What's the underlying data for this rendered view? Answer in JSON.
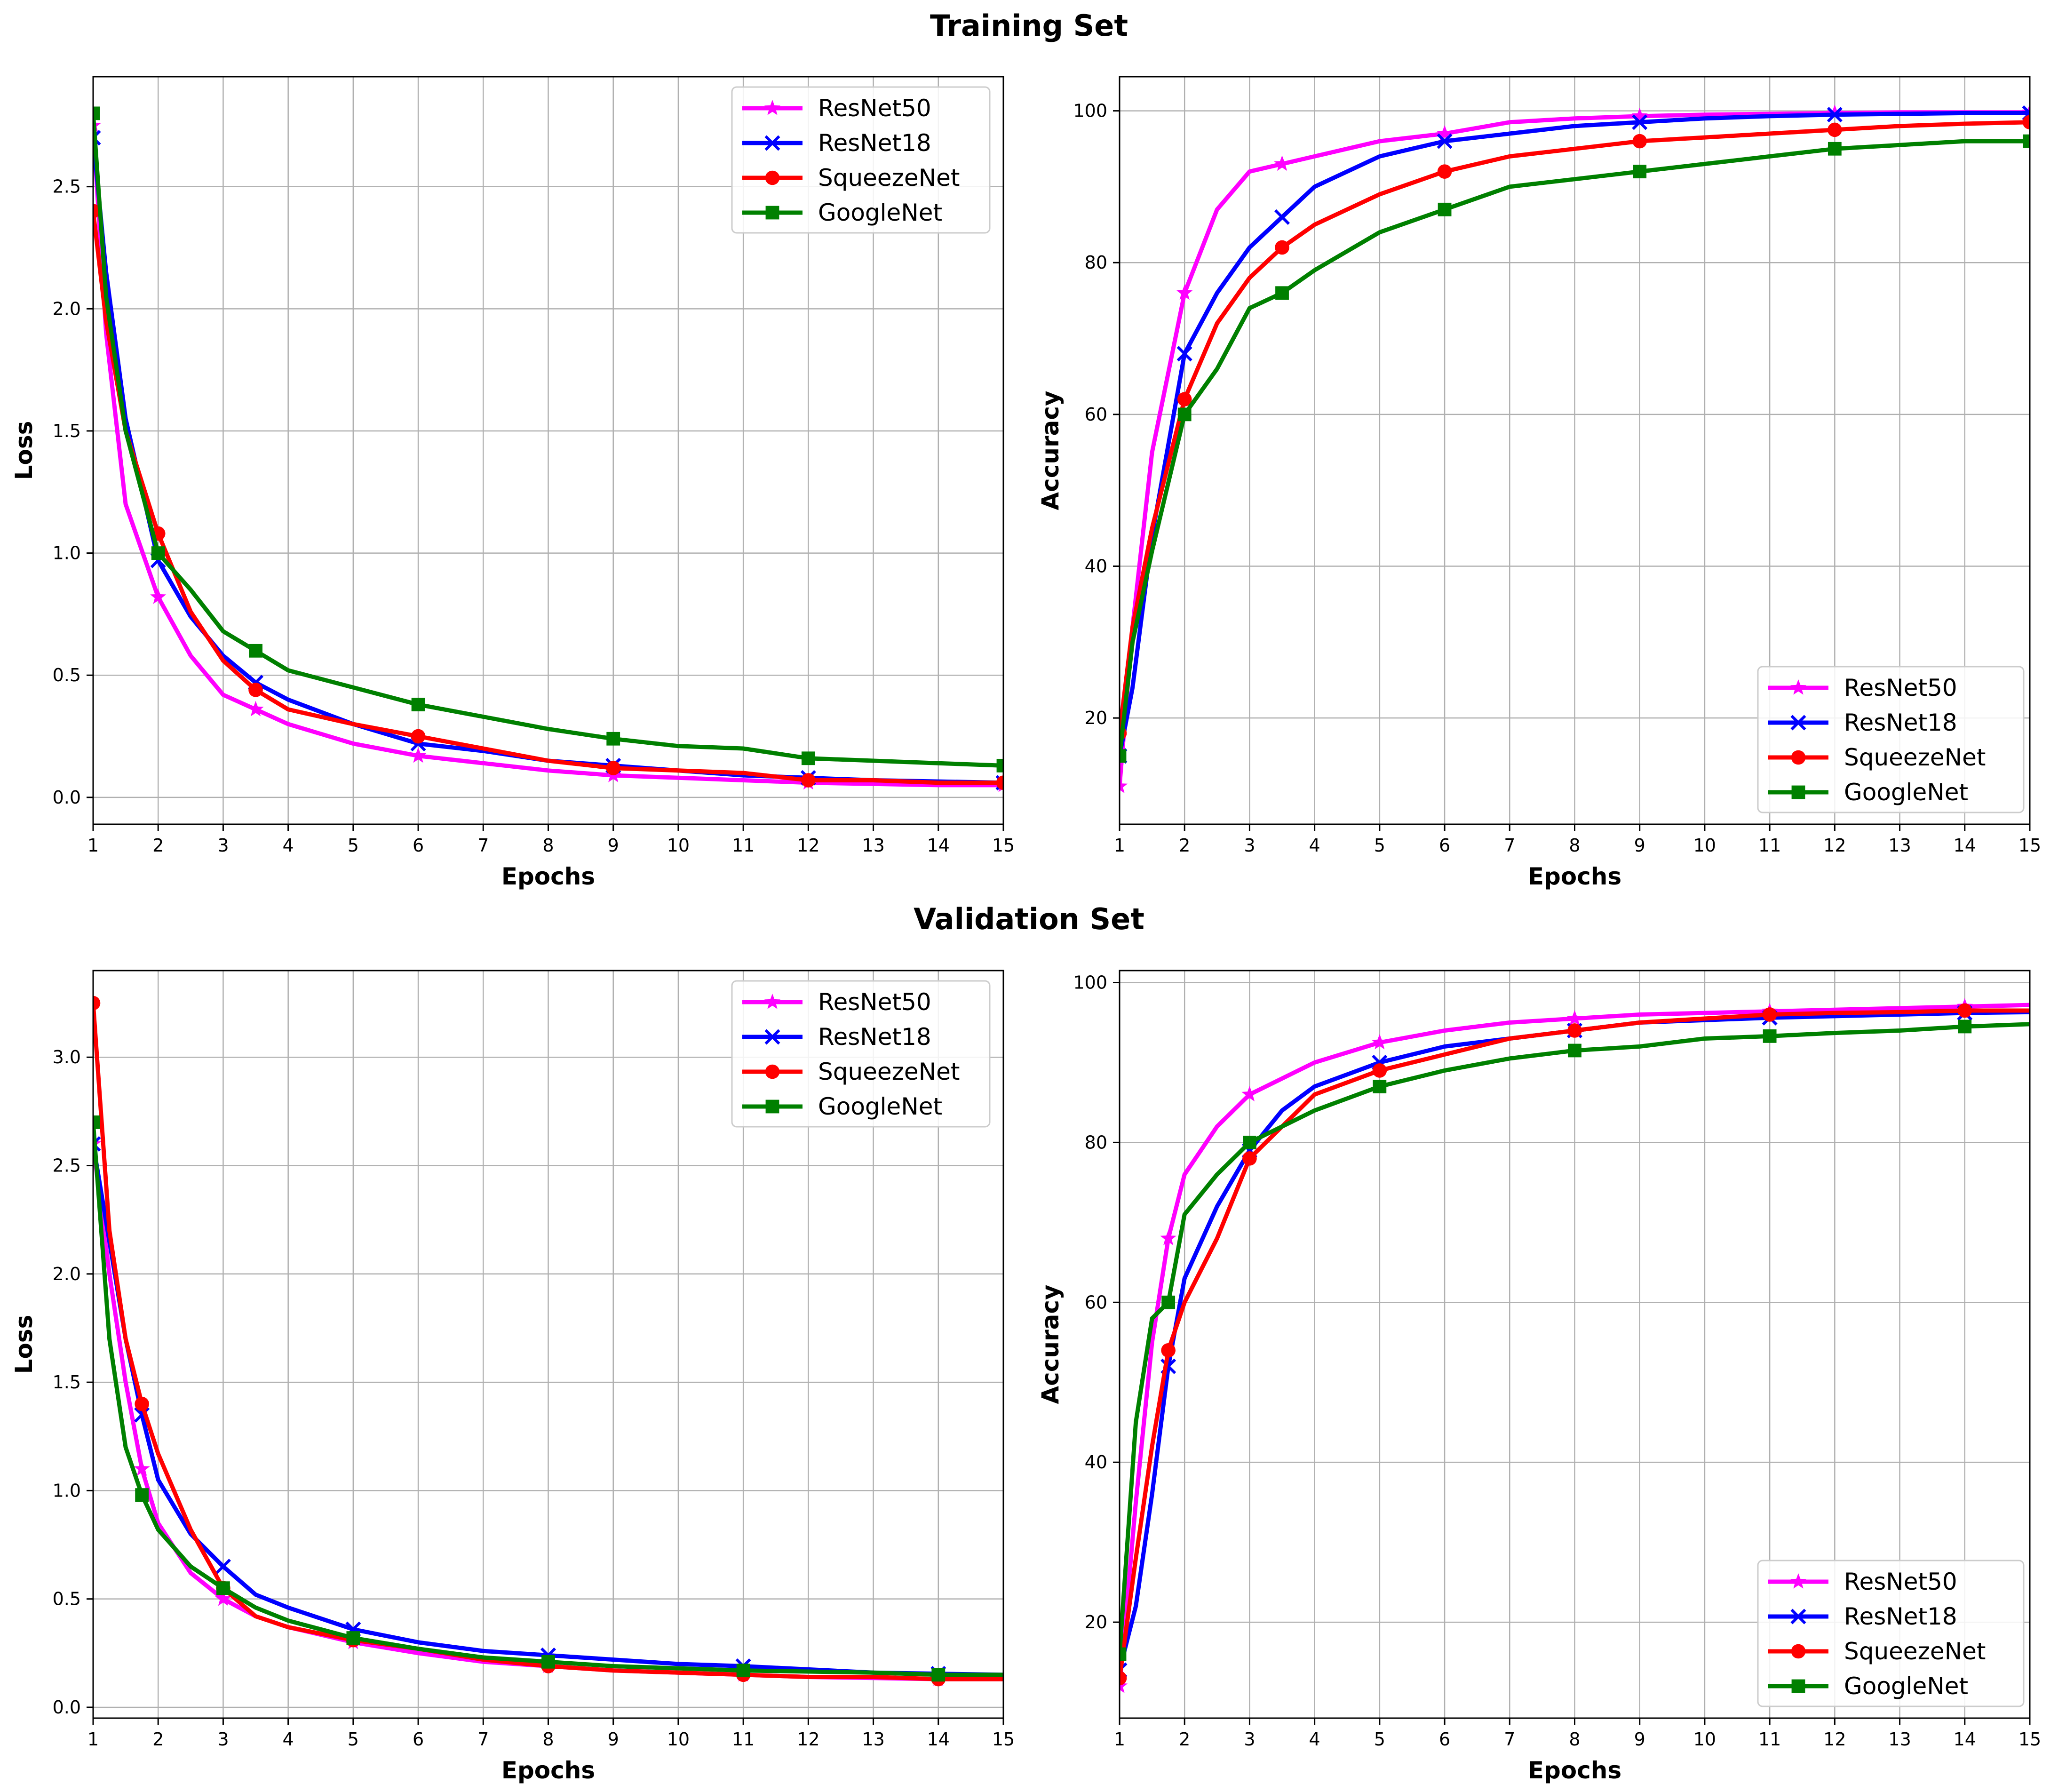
{
  "titles": {
    "training": "Training Set",
    "validation": "Validation Set"
  },
  "legend_entries": [
    {
      "name": "ResNet50",
      "color": "#ff00ff",
      "marker": "star"
    },
    {
      "name": "ResNet18",
      "color": "#0000ff",
      "marker": "x"
    },
    {
      "name": "SqueezeNet",
      "color": "#ff0000",
      "marker": "circle"
    },
    {
      "name": "GoogleNet",
      "color": "#008000",
      "marker": "square"
    }
  ],
  "chart_data": [
    {
      "id": "train-loss",
      "type": "line",
      "group": "Training Set",
      "xlabel": "Epochs",
      "ylabel": "Loss",
      "xlim": [
        1,
        15
      ],
      "ylim": [
        -0.11,
        2.95
      ],
      "xticks": [
        1,
        2,
        3,
        4,
        5,
        6,
        7,
        8,
        9,
        10,
        11,
        12,
        13,
        14,
        15
      ],
      "yticks": [
        0.0,
        0.5,
        1.0,
        1.5,
        2.0,
        2.5
      ],
      "ytick_labels": [
        "0.0",
        "0.5",
        "1.0",
        "1.5",
        "2.0",
        "2.5"
      ],
      "grid": true,
      "legend_position": "upper-right",
      "series": [
        {
          "name": "ResNet50",
          "x": [
            1,
            1.2,
            1.5,
            2,
            2.5,
            3,
            3.5,
            4,
            5,
            6,
            7,
            8,
            9,
            10,
            11,
            12,
            13,
            14,
            15
          ],
          "y": [
            2.75,
            1.9,
            1.2,
            0.82,
            0.58,
            0.42,
            0.36,
            0.3,
            0.22,
            0.17,
            0.14,
            0.11,
            0.09,
            0.08,
            0.07,
            0.06,
            0.055,
            0.05,
            0.05
          ]
        },
        {
          "name": "ResNet18",
          "x": [
            1,
            1.2,
            1.5,
            2,
            2.5,
            3,
            3.5,
            4,
            5,
            6,
            7,
            8,
            9,
            10,
            11,
            12,
            13,
            14,
            15
          ],
          "y": [
            2.7,
            2.15,
            1.55,
            0.97,
            0.74,
            0.58,
            0.47,
            0.4,
            0.3,
            0.22,
            0.19,
            0.15,
            0.13,
            0.11,
            0.09,
            0.08,
            0.07,
            0.065,
            0.06
          ]
        },
        {
          "name": "SqueezeNet",
          "x": [
            1,
            1.2,
            1.5,
            2,
            2.5,
            3,
            3.5,
            4,
            5,
            6,
            7,
            8,
            9,
            10,
            11,
            12,
            13,
            14,
            15
          ],
          "y": [
            2.4,
            1.95,
            1.5,
            1.08,
            0.76,
            0.56,
            0.44,
            0.36,
            0.3,
            0.25,
            0.2,
            0.15,
            0.12,
            0.11,
            0.1,
            0.07,
            0.07,
            0.06,
            0.06
          ]
        },
        {
          "name": "GoogleNet",
          "x": [
            1,
            1.2,
            1.5,
            2,
            2.5,
            3,
            3.5,
            4,
            5,
            6,
            7,
            8,
            9,
            10,
            11,
            12,
            13,
            14,
            15
          ],
          "y": [
            2.8,
            2.05,
            1.5,
            1.0,
            0.85,
            0.68,
            0.6,
            0.52,
            0.45,
            0.38,
            0.33,
            0.28,
            0.24,
            0.21,
            0.2,
            0.16,
            0.15,
            0.14,
            0.13
          ]
        }
      ]
    },
    {
      "id": "train-acc",
      "type": "line",
      "group": "Training Set",
      "xlabel": "Epochs",
      "ylabel": "Accuracy",
      "xlim": [
        1,
        15
      ],
      "ylim": [
        6,
        104.5
      ],
      "xticks": [
        1,
        2,
        3,
        4,
        5,
        6,
        7,
        8,
        9,
        10,
        11,
        12,
        13,
        14,
        15
      ],
      "yticks": [
        20,
        40,
        60,
        80,
        100
      ],
      "ytick_labels": [
        "20",
        "40",
        "60",
        "80",
        "100"
      ],
      "grid": true,
      "legend_position": "lower-right",
      "series": [
        {
          "name": "ResNet50",
          "x": [
            1,
            1.2,
            1.5,
            2,
            2.5,
            3,
            3.5,
            4,
            5,
            6,
            7,
            8,
            9,
            10,
            11,
            12,
            13,
            14,
            15
          ],
          "y": [
            11,
            32,
            55,
            76,
            87,
            92,
            93,
            94,
            96,
            97,
            98.5,
            99,
            99.3,
            99.5,
            99.6,
            99.7,
            99.8,
            99.8,
            99.8
          ]
        },
        {
          "name": "ResNet18",
          "x": [
            1,
            1.2,
            1.5,
            2,
            2.5,
            3,
            3.5,
            4,
            5,
            6,
            7,
            8,
            9,
            10,
            11,
            12,
            13,
            14,
            15
          ],
          "y": [
            15,
            24,
            44,
            68,
            76,
            82,
            86,
            90,
            94,
            96,
            97,
            98,
            98.5,
            99,
            99.3,
            99.5,
            99.6,
            99.7,
            99.7
          ]
        },
        {
          "name": "SqueezeNet",
          "x": [
            1,
            1.2,
            1.5,
            2,
            2.5,
            3,
            3.5,
            4,
            5,
            6,
            7,
            8,
            9,
            10,
            11,
            12,
            13,
            14,
            15
          ],
          "y": [
            18,
            32,
            45,
            62,
            72,
            78,
            82,
            85,
            89,
            92,
            94,
            95,
            96,
            96.5,
            97,
            97.5,
            98,
            98.3,
            98.5
          ]
        },
        {
          "name": "GoogleNet",
          "x": [
            1,
            1.2,
            1.5,
            2,
            2.5,
            3,
            3.5,
            4,
            5,
            6,
            7,
            8,
            9,
            10,
            11,
            12,
            13,
            14,
            15
          ],
          "y": [
            15,
            30,
            42,
            60,
            66,
            74,
            76,
            79,
            84,
            87,
            90,
            91,
            92,
            93,
            94,
            95,
            95.5,
            96,
            96
          ]
        }
      ]
    },
    {
      "id": "val-loss",
      "type": "line",
      "group": "Validation Set",
      "xlabel": "Epochs",
      "ylabel": "Loss",
      "xlim": [
        1,
        15
      ],
      "ylim": [
        -0.05,
        3.4
      ],
      "xticks": [
        1,
        2,
        3,
        4,
        5,
        6,
        7,
        8,
        9,
        10,
        11,
        12,
        13,
        14,
        15
      ],
      "yticks": [
        0.0,
        0.5,
        1.0,
        1.5,
        2.0,
        2.5,
        3.0
      ],
      "ytick_labels": [
        "0.0",
        "0.5",
        "1.0",
        "1.5",
        "2.0",
        "2.5",
        "3.0"
      ],
      "grid": true,
      "legend_position": "upper-right",
      "series": [
        {
          "name": "ResNet50",
          "x": [
            1,
            1.25,
            1.5,
            1.75,
            2,
            2.5,
            3,
            3.5,
            4,
            5,
            6,
            7,
            8,
            9,
            10,
            11,
            12,
            13,
            14,
            15
          ],
          "y": [
            2.6,
            2.0,
            1.5,
            1.1,
            0.85,
            0.62,
            0.5,
            0.42,
            0.37,
            0.3,
            0.25,
            0.21,
            0.19,
            0.17,
            0.16,
            0.15,
            0.14,
            0.135,
            0.13,
            0.13
          ]
        },
        {
          "name": "ResNet18",
          "x": [
            1,
            1.25,
            1.5,
            1.75,
            2,
            2.5,
            3,
            3.5,
            4,
            5,
            6,
            7,
            8,
            9,
            10,
            11,
            12,
            13,
            14,
            15
          ],
          "y": [
            2.6,
            2.15,
            1.7,
            1.35,
            1.05,
            0.8,
            0.65,
            0.52,
            0.46,
            0.36,
            0.3,
            0.26,
            0.24,
            0.22,
            0.2,
            0.19,
            0.175,
            0.16,
            0.155,
            0.15
          ]
        },
        {
          "name": "SqueezeNet",
          "x": [
            1,
            1.25,
            1.5,
            1.75,
            2,
            2.5,
            3,
            3.5,
            4,
            5,
            6,
            7,
            8,
            9,
            10,
            11,
            12,
            13,
            14,
            15
          ],
          "y": [
            3.25,
            2.2,
            1.7,
            1.4,
            1.17,
            0.82,
            0.55,
            0.42,
            0.37,
            0.31,
            0.27,
            0.22,
            0.19,
            0.17,
            0.16,
            0.15,
            0.14,
            0.14,
            0.13,
            0.13
          ]
        },
        {
          "name": "GoogleNet",
          "x": [
            1,
            1.25,
            1.5,
            1.75,
            2,
            2.5,
            3,
            3.5,
            4,
            5,
            6,
            7,
            8,
            9,
            10,
            11,
            12,
            13,
            14,
            15
          ],
          "y": [
            2.7,
            1.7,
            1.2,
            0.98,
            0.82,
            0.65,
            0.55,
            0.46,
            0.4,
            0.32,
            0.27,
            0.23,
            0.21,
            0.19,
            0.18,
            0.17,
            0.165,
            0.16,
            0.15,
            0.15
          ]
        }
      ]
    },
    {
      "id": "val-acc",
      "type": "line",
      "group": "Validation Set",
      "xlabel": "Epochs",
      "ylabel": "Accuracy",
      "xlim": [
        1,
        15
      ],
      "ylim": [
        8,
        101.5
      ],
      "xticks": [
        1,
        2,
        3,
        4,
        5,
        6,
        7,
        8,
        9,
        10,
        11,
        12,
        13,
        14,
        15
      ],
      "yticks": [
        20,
        40,
        60,
        80,
        100
      ],
      "ytick_labels": [
        "20",
        "40",
        "60",
        "80",
        "100"
      ],
      "grid": true,
      "legend_position": "lower-right",
      "series": [
        {
          "name": "ResNet50",
          "x": [
            1,
            1.25,
            1.5,
            1.75,
            2,
            2.5,
            3,
            3.5,
            4,
            5,
            6,
            7,
            8,
            9,
            10,
            11,
            12,
            13,
            14,
            15
          ],
          "y": [
            12,
            35,
            55,
            68,
            76,
            82,
            86,
            88,
            90,
            92.5,
            94,
            95,
            95.5,
            96,
            96.2,
            96.4,
            96.6,
            96.8,
            97,
            97.2
          ]
        },
        {
          "name": "ResNet18",
          "x": [
            1,
            1.25,
            1.5,
            1.75,
            2,
            2.5,
            3,
            3.5,
            4,
            5,
            6,
            7,
            8,
            9,
            10,
            11,
            12,
            13,
            14,
            15
          ],
          "y": [
            14,
            22,
            36,
            52,
            63,
            72,
            79,
            84,
            87,
            90,
            92,
            93,
            94,
            95,
            95.3,
            95.6,
            95.8,
            96,
            96.2,
            96.3
          ]
        },
        {
          "name": "SqueezeNet",
          "x": [
            1,
            1.25,
            1.5,
            1.75,
            2,
            2.5,
            3,
            3.5,
            4,
            5,
            6,
            7,
            8,
            9,
            10,
            11,
            12,
            13,
            14,
            15
          ],
          "y": [
            13,
            28,
            42,
            54,
            60,
            68,
            78,
            82,
            86,
            89,
            91,
            93,
            94,
            95,
            95.5,
            96,
            96.2,
            96.3,
            96.5,
            96.5
          ]
        },
        {
          "name": "GoogleNet",
          "x": [
            1,
            1.25,
            1.5,
            1.75,
            2,
            2.5,
            3,
            3.5,
            4,
            5,
            6,
            7,
            8,
            9,
            10,
            11,
            12,
            13,
            14,
            15
          ],
          "y": [
            16,
            45,
            58,
            60,
            71,
            76,
            80,
            82,
            84,
            87,
            89,
            90.5,
            91.5,
            92,
            93,
            93.3,
            93.7,
            94,
            94.5,
            94.8
          ]
        }
      ]
    }
  ]
}
